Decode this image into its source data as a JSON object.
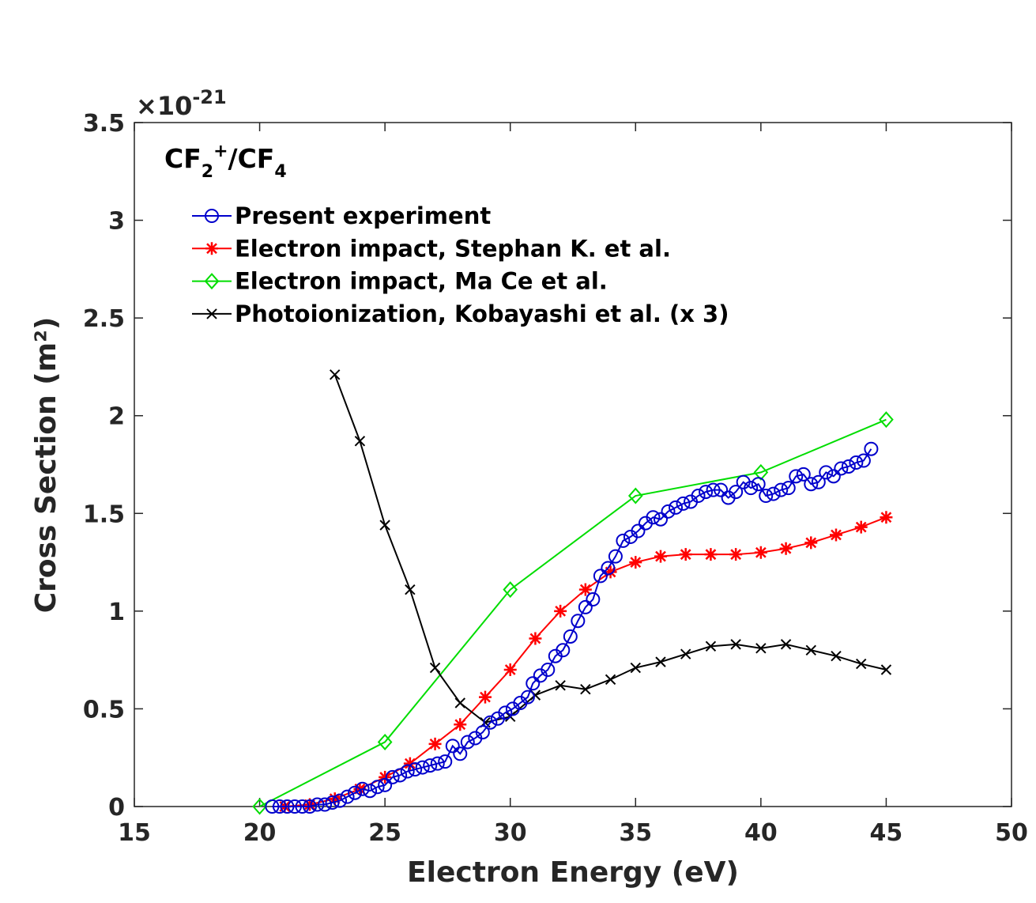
{
  "chart_data": {
    "type": "line",
    "annotation": {
      "base1": "CF",
      "sub1": "2",
      "sup1": "+",
      "slash": "/CF",
      "sub2": "4"
    },
    "exponent": {
      "prefix": "×10",
      "power": "-21"
    },
    "xlabel": "Electron Energy (eV)",
    "ylabel": "Cross Section (m²)",
    "xlim": [
      15,
      50
    ],
    "ylim": [
      0,
      3.5
    ],
    "xticks": [
      "15",
      "20",
      "25",
      "30",
      "35",
      "40",
      "45",
      "50"
    ],
    "yticks": [
      "0",
      "0.5",
      "1",
      "1.5",
      "2",
      "2.5",
      "3",
      "3.5"
    ],
    "grid": false,
    "legend_position": "top-left",
    "series": [
      {
        "name": "Present experiment",
        "color": "#0000cc",
        "marker": "circle",
        "x": [
          20.5,
          20.8,
          21.1,
          21.4,
          21.7,
          22,
          22.3,
          22.6,
          22.9,
          23.2,
          23.5,
          23.8,
          24.1,
          24.4,
          24.7,
          25,
          25.3,
          25.6,
          25.9,
          26.2,
          26.5,
          26.8,
          27.1,
          27.4,
          27.7,
          28,
          28.3,
          28.6,
          28.9,
          29.2,
          29.5,
          29.8,
          30.1,
          30.4,
          30.7,
          30.9,
          31.2,
          31.5,
          31.8,
          32.1,
          32.4,
          32.7,
          33,
          33.3,
          33.6,
          33.9,
          34.2,
          34.5,
          34.8,
          35.1,
          35.4,
          35.7,
          36,
          36.3,
          36.6,
          36.9,
          37.2,
          37.5,
          37.8,
          38.1,
          38.4,
          38.7,
          39,
          39.3,
          39.6,
          39.9,
          40.2,
          40.5,
          40.8,
          41.1,
          41.4,
          41.7,
          42,
          42.3,
          42.6,
          42.9,
          43.2,
          43.5,
          43.8,
          44.1,
          44.4
        ],
        "y": [
          0,
          0,
          0,
          0,
          0,
          0,
          0.01,
          0.01,
          0.02,
          0.03,
          0.05,
          0.07,
          0.09,
          0.08,
          0.1,
          0.11,
          0.15,
          0.16,
          0.18,
          0.19,
          0.2,
          0.21,
          0.22,
          0.23,
          0.31,
          0.27,
          0.33,
          0.35,
          0.38,
          0.43,
          0.45,
          0.48,
          0.5,
          0.53,
          0.56,
          0.63,
          0.67,
          0.7,
          0.77,
          0.8,
          0.87,
          0.95,
          1.02,
          1.06,
          1.18,
          1.22,
          1.28,
          1.36,
          1.38,
          1.41,
          1.45,
          1.48,
          1.47,
          1.51,
          1.53,
          1.55,
          1.56,
          1.59,
          1.61,
          1.62,
          1.62,
          1.58,
          1.61,
          1.66,
          1.63,
          1.65,
          1.59,
          1.6,
          1.62,
          1.63,
          1.69,
          1.7,
          1.65,
          1.66,
          1.71,
          1.69,
          1.73,
          1.74,
          1.76,
          1.77,
          1.83
        ]
      },
      {
        "name": "Electron impact, Stephan K. et al.",
        "color": "#ff0000",
        "marker": "star",
        "x": [
          21,
          22,
          23,
          24,
          25,
          26,
          27,
          28,
          29,
          30,
          31,
          32,
          33,
          34,
          35,
          36,
          37,
          38,
          39,
          40,
          41,
          42,
          43,
          44,
          45
        ],
        "y": [
          0,
          0.01,
          0.04,
          0.09,
          0.15,
          0.22,
          0.32,
          0.42,
          0.56,
          0.7,
          0.86,
          1.0,
          1.11,
          1.2,
          1.25,
          1.28,
          1.29,
          1.29,
          1.29,
          1.3,
          1.32,
          1.35,
          1.39,
          1.43,
          1.48
        ]
      },
      {
        "name": "Electron impact, Ma Ce et al.",
        "color": "#00dd00",
        "marker": "diamond",
        "x": [
          20,
          25,
          30,
          35,
          40,
          45
        ],
        "y": [
          0,
          0.33,
          1.11,
          1.59,
          1.71,
          1.98
        ]
      },
      {
        "name": "Photoionization, Kobayashi et al. (x 3)",
        "color": "#000000",
        "marker": "x",
        "x": [
          23,
          24,
          25,
          26,
          27,
          28,
          29,
          30,
          31,
          32,
          33,
          34,
          35,
          36,
          37,
          38,
          39,
          40,
          41,
          42,
          43,
          44,
          45
        ],
        "y": [
          2.21,
          1.87,
          1.44,
          1.11,
          0.71,
          0.53,
          0.43,
          0.46,
          0.57,
          0.62,
          0.6,
          0.65,
          0.71,
          0.74,
          0.78,
          0.82,
          0.83,
          0.81,
          0.83,
          0.8,
          0.77,
          0.73,
          0.7
        ]
      }
    ]
  }
}
